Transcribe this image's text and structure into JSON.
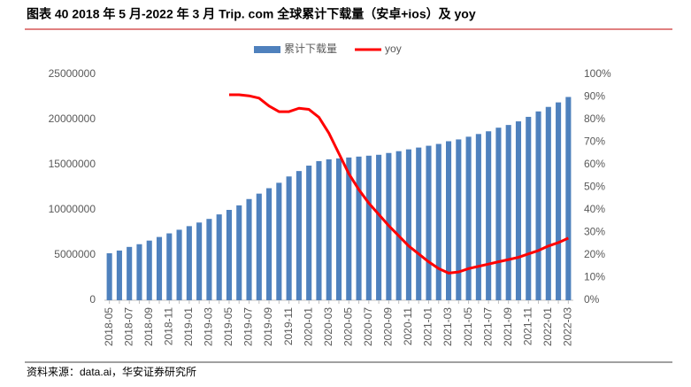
{
  "chart_data": {
    "type": "bar_line",
    "title": "图表 40 2018 年 5 月-2022 年 3 月 Trip. com 全球累计下载量（安卓+ios）及 yoy",
    "source": "资料来源：data.ai，华安证券研究所",
    "categories": [
      "2018-05",
      null,
      "2018-07",
      null,
      "2018-09",
      null,
      "2018-11",
      null,
      "2019-01",
      null,
      "2019-03",
      null,
      "2019-05",
      null,
      "2019-07",
      null,
      "2019-09",
      null,
      "2019-11",
      null,
      "2020-01",
      null,
      "2020-03",
      null,
      "2020-05",
      null,
      "2020-07",
      null,
      "2020-09",
      null,
      "2020-11",
      null,
      "2021-01",
      null,
      "2021-03",
      null,
      "2021-05",
      null,
      "2021-07",
      null,
      "2021-09",
      null,
      "2021-11",
      null,
      "2022-01",
      null,
      "2022-03"
    ],
    "series": [
      {
        "name": "累计下载量",
        "type": "bar",
        "color": "#4f81bd",
        "values": [
          5200000,
          5500000,
          5900000,
          6200000,
          6600000,
          7000000,
          7400000,
          7800000,
          8200000,
          8600000,
          9000000,
          9500000,
          10000000,
          10500000,
          11200000,
          11800000,
          12400000,
          13000000,
          13700000,
          14300000,
          14900000,
          15400000,
          15600000,
          15700000,
          15800000,
          15900000,
          16000000,
          16100000,
          16300000,
          16500000,
          16700000,
          16900000,
          17100000,
          17300000,
          17600000,
          17800000,
          18100000,
          18400000,
          18700000,
          19100000,
          19400000,
          19800000,
          20300000,
          20900000,
          21400000,
          21900000,
          22500000
        ]
      },
      {
        "name": "yoy",
        "type": "line",
        "axis": "y2",
        "color": "#ff0000",
        "values": [
          null,
          null,
          null,
          null,
          null,
          null,
          null,
          null,
          null,
          null,
          null,
          null,
          91,
          91,
          90.5,
          89.5,
          86,
          83.5,
          83.5,
          85,
          84.5,
          81,
          74,
          65,
          56,
          49,
          43,
          38,
          33,
          28.5,
          24,
          20.5,
          17,
          14,
          12,
          12.5,
          14,
          15,
          16,
          17,
          18,
          19,
          20.5,
          22,
          24,
          25.5,
          27.5
        ]
      }
    ],
    "ylim": [
      0,
      25000000
    ],
    "yticks": [
      0,
      5000000,
      10000000,
      15000000,
      20000000,
      25000000
    ],
    "y2lim": [
      0,
      100
    ],
    "y2ticks": [
      {
        "value": 0,
        "label": "0%"
      },
      {
        "value": 10,
        "label": "10%"
      },
      {
        "value": 20,
        "label": "20%"
      },
      {
        "value": 30,
        "label": "30%"
      },
      {
        "value": 40,
        "label": "40%"
      },
      {
        "value": 50,
        "label": "50%"
      },
      {
        "value": 60,
        "label": "60%"
      },
      {
        "value": 70,
        "label": "70%"
      },
      {
        "value": 80,
        "label": "80%"
      },
      {
        "value": 90,
        "label": "90%"
      },
      {
        "value": 100,
        "label": "100%"
      }
    ],
    "legend": "top"
  }
}
